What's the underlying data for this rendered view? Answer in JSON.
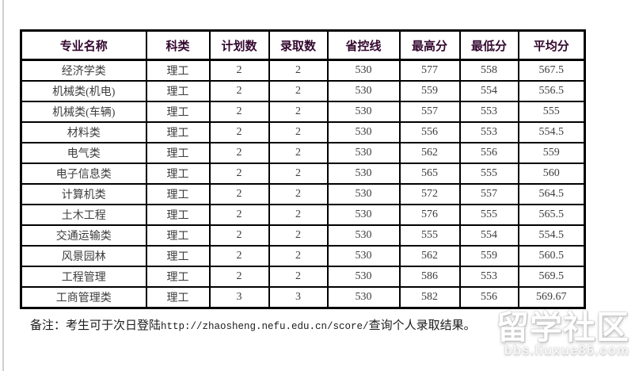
{
  "colors": {
    "background": "#ffffff",
    "table_border": "#000000",
    "header_text": "#33082f",
    "cell_text": "#3d3d3d",
    "left_rule": "#cfcfcf",
    "note_text": "#1c1c1c",
    "watermark_text": "#ffffff"
  },
  "table": {
    "columns": [
      "专业名称",
      "科类",
      "计划数",
      "录取数",
      "省控线",
      "最高分",
      "最低分",
      "平均分"
    ],
    "rows": [
      [
        "经济学类",
        "理工",
        "2",
        "2",
        "530",
        "577",
        "558",
        "567.5"
      ],
      [
        "机械类(机电)",
        "理工",
        "2",
        "2",
        "530",
        "559",
        "554",
        "556.5"
      ],
      [
        "机械类(车辆)",
        "理工",
        "2",
        "2",
        "530",
        "557",
        "553",
        "555"
      ],
      [
        "材料类",
        "理工",
        "2",
        "2",
        "530",
        "556",
        "553",
        "554.5"
      ],
      [
        "电气类",
        "理工",
        "2",
        "2",
        "530",
        "562",
        "556",
        "559"
      ],
      [
        "电子信息类",
        "理工",
        "2",
        "2",
        "530",
        "565",
        "555",
        "560"
      ],
      [
        "计算机类",
        "理工",
        "2",
        "2",
        "530",
        "572",
        "557",
        "564.5"
      ],
      [
        "土木工程",
        "理工",
        "2",
        "2",
        "530",
        "576",
        "555",
        "565.5"
      ],
      [
        "交通运输类",
        "理工",
        "2",
        "2",
        "530",
        "555",
        "554",
        "554.5"
      ],
      [
        "风景园林",
        "理工",
        "2",
        "2",
        "530",
        "562",
        "559",
        "560.5"
      ],
      [
        "工程管理",
        "理工",
        "2",
        "2",
        "530",
        "586",
        "553",
        "569.5"
      ],
      [
        "工商管理类",
        "理工",
        "3",
        "3",
        "530",
        "582",
        "556",
        "569.67"
      ]
    ]
  },
  "note": {
    "prefix": "备注：考生可于次日登陆",
    "url": "http://zhaosheng.nefu.edu.cn/score/",
    "suffix": "查询个人录取结果。"
  },
  "watermark": {
    "title": "留学社区",
    "subtitle": "bbs.liuxue86.com"
  }
}
